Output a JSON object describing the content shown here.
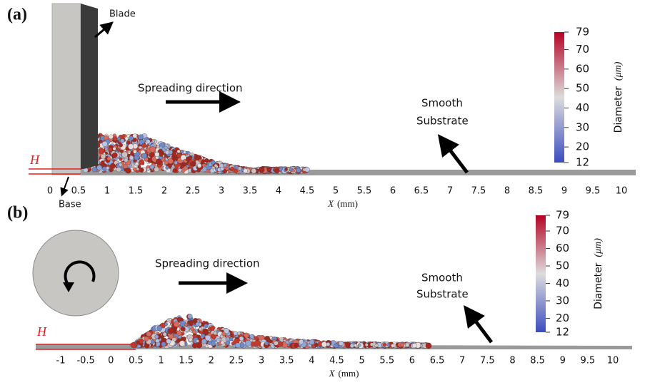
{
  "panels": [
    {
      "label": "(a)",
      "annotations": {
        "blade": "Blade",
        "base": "Base",
        "spreading": "Spreading direction",
        "substrate": [
          "Smooth",
          "Substrate"
        ],
        "layer": "H"
      },
      "xaxis": {
        "var": "X",
        "unit": "(mm)",
        "lim": [
          0,
          10
        ],
        "ticks": [
          0,
          0.5,
          1,
          1.5,
          2,
          2.5,
          3,
          3.5,
          4,
          4.5,
          5,
          5.5,
          6,
          6.5,
          7,
          7.5,
          8,
          8.5,
          9,
          9.5,
          10
        ]
      },
      "colorbar": {
        "title": "Diameter",
        "unit": "(μm)",
        "lim": [
          12,
          79
        ],
        "ticks": [
          12,
          20,
          30,
          40,
          50,
          60,
          70,
          79
        ]
      }
    },
    {
      "label": "(b)",
      "annotations": {
        "spreading": "Spreading direction",
        "substrate": [
          "Smooth",
          "Substrate"
        ],
        "layer": "H"
      },
      "xaxis": {
        "var": "X",
        "unit": "(mm)",
        "lim": [
          -1,
          10
        ],
        "ticks": [
          -1,
          -0.5,
          0,
          0.5,
          1,
          1.5,
          2,
          2.5,
          3,
          3.5,
          4,
          4.5,
          5,
          5.5,
          6,
          6.5,
          7,
          7.5,
          8,
          8.5,
          9,
          9.5,
          10
        ]
      },
      "colorbar": {
        "title": "Diameter",
        "unit": "(μm)",
        "lim": [
          12,
          79
        ],
        "ticks": [
          12,
          20,
          30,
          40,
          50,
          60,
          70,
          79
        ]
      }
    }
  ]
}
